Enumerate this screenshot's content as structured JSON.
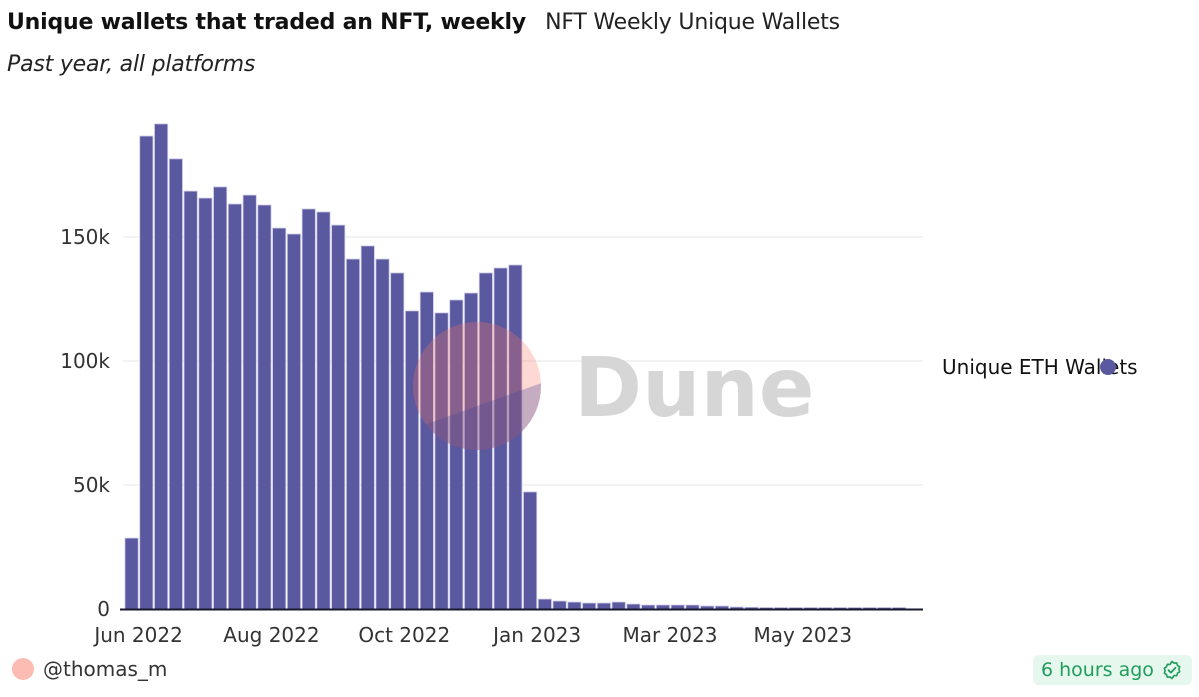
{
  "header": {
    "title": "Unique wallets that traded an NFT, weekly",
    "query_name": "NFT Weekly Unique Wallets",
    "subtitle": "Past year, all platforms"
  },
  "footer": {
    "author": "@thomas_m",
    "updated": "6 hours ago",
    "updated_icon": "verified-badge-icon"
  },
  "watermark": "Dune",
  "colors": {
    "bar": "#5a589e",
    "badge_text": "#1f9d5c",
    "badge_bg": "#e6f7ee",
    "avatar": "#fcbcb3"
  },
  "chart_data": {
    "type": "bar",
    "title": "Unique wallets that traded an NFT, weekly",
    "xlabel": "",
    "ylabel": "",
    "ylim": [
      0,
      200000
    ],
    "grid": true,
    "legend_position": "right",
    "y_ticks": [
      {
        "value": 0,
        "label": "0"
      },
      {
        "value": 50000,
        "label": "50k"
      },
      {
        "value": 100000,
        "label": "100k"
      },
      {
        "value": 150000,
        "label": "150k"
      }
    ],
    "x_ticks": [
      {
        "index": 0,
        "label": "Jun 2022"
      },
      {
        "index": 9,
        "label": "Aug 2022"
      },
      {
        "index": 18,
        "label": "Oct 2022"
      },
      {
        "index": 27,
        "label": "Jan 2023"
      },
      {
        "index": 36,
        "label": "Mar 2023"
      },
      {
        "index": 45,
        "label": "May 2023"
      }
    ],
    "series": [
      {
        "name": "Unique ETH Wallets",
        "values": [
          28600,
          190700,
          195600,
          181500,
          168500,
          165700,
          170200,
          163300,
          166900,
          162900,
          153600,
          151200,
          161300,
          160100,
          154800,
          141100,
          146400,
          141100,
          135500,
          120200,
          127800,
          119400,
          124600,
          127400,
          135500,
          137500,
          138700,
          47200,
          4000,
          3200,
          2800,
          2400,
          2400,
          2800,
          2000,
          1600,
          1600,
          1600,
          1600,
          1200,
          1200,
          800,
          700,
          600,
          600,
          600,
          600,
          600,
          600,
          600,
          600,
          600,
          600
        ]
      }
    ]
  }
}
